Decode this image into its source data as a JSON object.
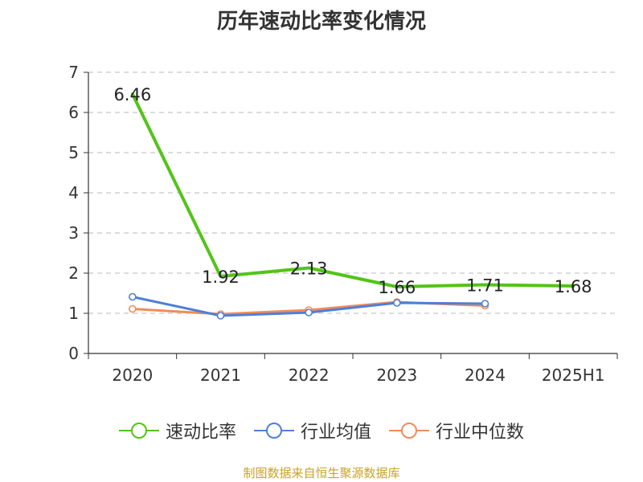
{
  "chart_data": {
    "type": "line",
    "title": "历年速动比率变化情况",
    "categories": [
      "2020",
      "2021",
      "2022",
      "2023",
      "2024",
      "2025H1"
    ],
    "ylim": [
      0,
      7
    ],
    "yticks": [
      "0",
      "1",
      "2",
      "3",
      "4",
      "5",
      "6",
      "7"
    ],
    "grid": true,
    "legend_position": "bottom",
    "series": [
      {
        "name": "速动比率",
        "color": "#52c41a",
        "values": [
          6.46,
          1.92,
          2.13,
          1.66,
          1.71,
          1.68
        ],
        "labels": [
          "6.46",
          "1.92",
          "2.13",
          "1.66",
          "1.71",
          "1.68"
        ]
      },
      {
        "name": "行业均值",
        "color": "#4f7fd8",
        "values": [
          1.41,
          0.94,
          1.02,
          1.26,
          1.24,
          null
        ]
      },
      {
        "name": "行业中位数",
        "color": "#f08c5a",
        "values": [
          1.11,
          0.98,
          1.08,
          1.28,
          1.19,
          null
        ]
      }
    ]
  },
  "source": "制图数据来自恒生聚源数据库"
}
